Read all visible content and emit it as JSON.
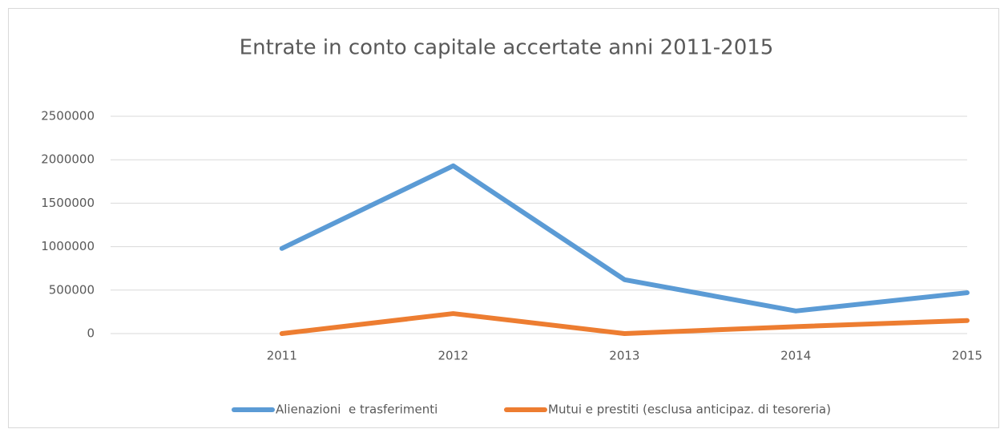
{
  "chart_data": {
    "type": "line",
    "title": "Entrate in conto capitale accertate anni 2011-2015",
    "categories": [
      null,
      "2011",
      "2012",
      "2013",
      "2014",
      "2015"
    ],
    "series": [
      {
        "name": "Alienazioni  e trasferimenti",
        "color": "#5b9bd5",
        "values": [
          null,
          980000,
          1930000,
          620000,
          260000,
          470000
        ]
      },
      {
        "name": "Mutui e prestiti (esclusa anticipaz. di tesoreria)",
        "color": "#ed7d31",
        "values": [
          null,
          0,
          230000,
          0,
          80000,
          150000
        ]
      }
    ],
    "ylim": [
      0,
      2500000
    ],
    "yticks": [
      0,
      500000,
      1000000,
      1500000,
      2000000,
      2500000
    ],
    "grid": true,
    "legend": "bottom"
  }
}
